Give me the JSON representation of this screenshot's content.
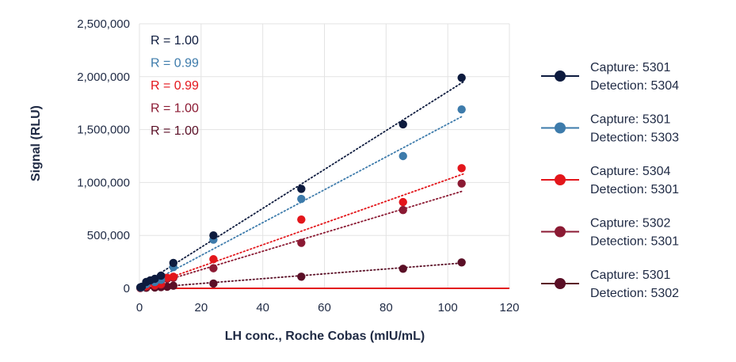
{
  "chart_data": {
    "type": "scatter",
    "xlabel": "LH conc., Roche Cobas (mIU/mL)",
    "ylabel": "Signal (RLU)",
    "xlim": [
      0,
      120
    ],
    "ylim": [
      0,
      2500000
    ],
    "x_ticks": [
      "0",
      "20",
      "40",
      "60",
      "80",
      "100",
      "120"
    ],
    "y_ticks": [
      "0",
      "500,000",
      "1,000,000",
      "1,500,000",
      "2,000,000",
      "2,500,000"
    ],
    "grid": "on",
    "legend_position": "right",
    "baseline_color": "#e3161b",
    "series": [
      {
        "legend_line1": "Capture: 5301",
        "legend_line2": "Detection: 5304",
        "r_label": "R = 1.00",
        "color": "#0d1b3e",
        "x": [
          0.3,
          0.8,
          2.2,
          3.5,
          5.0,
          7.0,
          11.0,
          24.0,
          52.5,
          85.5,
          104.5
        ],
        "y": [
          10000,
          15000,
          60000,
          75000,
          90000,
          120000,
          240000,
          500000,
          940000,
          1550000,
          1990000
        ],
        "trend": [
          [
            0,
            20000
          ],
          [
            105,
            1950000
          ]
        ]
      },
      {
        "legend_line1": "Capture: 5301",
        "legend_line2": "Detection: 5303",
        "r_label": "R = 0.99",
        "color": "#3d7bab",
        "x": [
          0.3,
          0.8,
          2.2,
          5.0,
          7.0,
          11.0,
          24.0,
          52.5,
          85.5,
          104.5
        ],
        "y": [
          8000,
          12000,
          40000,
          60000,
          80000,
          200000,
          460000,
          845000,
          1250000,
          1690000
        ],
        "trend": [
          [
            0,
            0
          ],
          [
            105,
            1630000
          ]
        ]
      },
      {
        "legend_line1": "Capture: 5304",
        "legend_line2": "Detection: 5301",
        "r_label": "R = 0.99",
        "color": "#e3161b",
        "x": [
          0.3,
          2.2,
          5.0,
          7.0,
          9.0,
          11.0,
          24.0,
          52.5,
          85.5,
          104.5
        ],
        "y": [
          5000,
          20000,
          30000,
          40000,
          100000,
          110000,
          275000,
          650000,
          815000,
          1135000
        ],
        "trend": [
          [
            0,
            0
          ],
          [
            105,
            1080000
          ]
        ]
      },
      {
        "legend_line1": "Capture: 5302",
        "legend_line2": "Detection: 5301",
        "r_label": "R = 1.00",
        "color": "#8b1a33",
        "x": [
          0.3,
          2.2,
          5.0,
          7.0,
          9.0,
          11.0,
          24.0,
          52.5,
          85.5,
          104.5
        ],
        "y": [
          5000,
          15000,
          25000,
          35000,
          90000,
          100000,
          190000,
          430000,
          740000,
          990000
        ],
        "trend": [
          [
            0,
            0
          ],
          [
            105,
            920000
          ]
        ]
      },
      {
        "legend_line1": "Capture: 5301",
        "legend_line2": "Detection: 5302",
        "r_label": "R = 1.00",
        "color": "#5a0f26",
        "x": [
          0.3,
          2.2,
          5.0,
          7.0,
          9.0,
          11.0,
          24.0,
          52.5,
          85.5,
          104.5
        ],
        "y": [
          2000,
          5000,
          8000,
          12000,
          15000,
          25000,
          45000,
          110000,
          185000,
          245000
        ],
        "trend": [
          [
            0,
            0
          ],
          [
            105,
            240000
          ]
        ]
      }
    ]
  }
}
